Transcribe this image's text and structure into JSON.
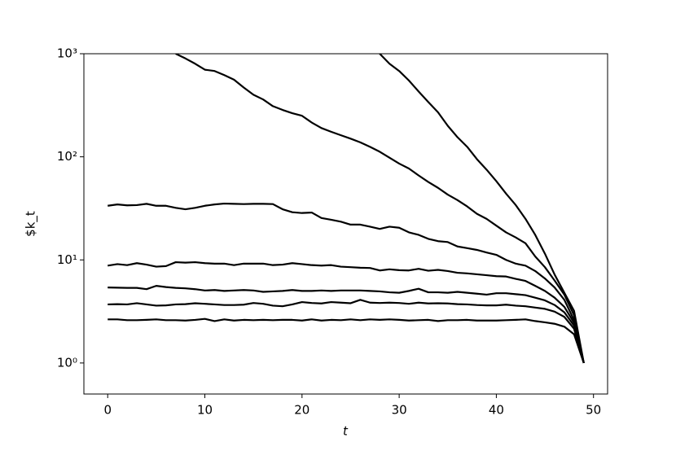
{
  "chart_data": {
    "type": "line",
    "y_label": "$k_t",
    "x_label": "t",
    "x": [
      0,
      1,
      2,
      3,
      4,
      5,
      6,
      7,
      8,
      9,
      10,
      11,
      12,
      13,
      14,
      15,
      16,
      17,
      18,
      19,
      20,
      21,
      22,
      23,
      24,
      25,
      26,
      27,
      28,
      29,
      30,
      31,
      32,
      33,
      34,
      35,
      36,
      37,
      38,
      39,
      40,
      41,
      42,
      43,
      44,
      45,
      46,
      47,
      48,
      49
    ],
    "color": "#000000",
    "series": [
      {
        "values": [
          2.65,
          2.65,
          2.6,
          2.6,
          2.62,
          2.65,
          2.6,
          2.6,
          2.58,
          2.62,
          2.68,
          2.55,
          2.65,
          2.58,
          2.62,
          2.6,
          2.62,
          2.6,
          2.62,
          2.62,
          2.58,
          2.65,
          2.58,
          2.62,
          2.6,
          2.65,
          2.6,
          2.65,
          2.62,
          2.65,
          2.62,
          2.58,
          2.6,
          2.62,
          2.55,
          2.6,
          2.6,
          2.62,
          2.58,
          2.58,
          2.58,
          2.6,
          2.62,
          2.65,
          2.55,
          2.48,
          2.4,
          2.25,
          1.9,
          1.0
        ]
      },
      {
        "values": [
          3.7,
          3.72,
          3.7,
          3.8,
          3.7,
          3.6,
          3.62,
          3.7,
          3.72,
          3.8,
          3.75,
          3.7,
          3.65,
          3.65,
          3.68,
          3.82,
          3.75,
          3.6,
          3.55,
          3.7,
          3.9,
          3.82,
          3.78,
          3.9,
          3.85,
          3.8,
          4.1,
          3.85,
          3.82,
          3.85,
          3.82,
          3.75,
          3.85,
          3.78,
          3.8,
          3.78,
          3.72,
          3.7,
          3.65,
          3.62,
          3.62,
          3.68,
          3.6,
          3.55,
          3.45,
          3.35,
          3.15,
          2.8,
          2.15,
          1.0
        ]
      },
      {
        "values": [
          5.4,
          5.38,
          5.35,
          5.35,
          5.2,
          5.6,
          5.45,
          5.35,
          5.3,
          5.2,
          5.05,
          5.1,
          5.0,
          5.05,
          5.1,
          5.05,
          4.9,
          4.95,
          5.0,
          5.1,
          5.0,
          5.0,
          5.05,
          5.0,
          5.05,
          5.05,
          5.05,
          5.0,
          4.95,
          4.85,
          4.8,
          5.0,
          5.25,
          4.85,
          4.85,
          4.8,
          4.9,
          4.8,
          4.7,
          4.6,
          4.75,
          4.75,
          4.65,
          4.55,
          4.3,
          4.05,
          3.65,
          3.1,
          2.3,
          1.0
        ]
      },
      {
        "values": [
          8.8,
          9.1,
          8.9,
          9.3,
          9.0,
          8.6,
          8.7,
          9.5,
          9.4,
          9.5,
          9.3,
          9.2,
          9.2,
          8.9,
          9.2,
          9.2,
          9.2,
          8.9,
          9.0,
          9.3,
          9.1,
          8.9,
          8.8,
          8.9,
          8.6,
          8.5,
          8.4,
          8.35,
          7.9,
          8.1,
          7.95,
          7.9,
          8.2,
          7.85,
          8.0,
          7.8,
          7.5,
          7.4,
          7.25,
          7.1,
          6.95,
          6.9,
          6.55,
          6.25,
          5.6,
          5.0,
          4.3,
          3.5,
          2.45,
          1.0
        ]
      },
      {
        "values": [
          33.5,
          34.5,
          33.8,
          34,
          35,
          33.5,
          33.5,
          32,
          31,
          32,
          33.5,
          34.5,
          35.2,
          35,
          34.8,
          35,
          35,
          34.8,
          31,
          29,
          28.5,
          28.8,
          25.5,
          24.5,
          23.5,
          22,
          22,
          21,
          20,
          21,
          20.5,
          18.5,
          17.5,
          16,
          15.2,
          14.9,
          13.5,
          13,
          12.5,
          11.8,
          11.2,
          10,
          9.2,
          8.8,
          7.8,
          6.6,
          5.4,
          4.1,
          2.6,
          1.0
        ]
      },
      {
        "values": [
          null,
          null,
          null,
          null,
          null,
          null,
          null,
          1000,
          900,
          800,
          700,
          680,
          620,
          560,
          470,
          400,
          360,
          310,
          285,
          265,
          250,
          215,
          190,
          175,
          162,
          150,
          138,
          125,
          112,
          98,
          86,
          77,
          66,
          57,
          50,
          43,
          38,
          33,
          28,
          25,
          21.5,
          18.5,
          16.5,
          14.5,
          10.8,
          8.5,
          6.3,
          4.6,
          2.9,
          1.0
        ]
      },
      {
        "values": [
          null,
          null,
          null,
          null,
          null,
          null,
          null,
          null,
          null,
          null,
          null,
          null,
          null,
          null,
          null,
          null,
          null,
          null,
          null,
          null,
          null,
          null,
          null,
          null,
          null,
          null,
          null,
          null,
          1000,
          800,
          680,
          550,
          430,
          340,
          270,
          200,
          155,
          125,
          95,
          75,
          58,
          44,
          34,
          25,
          17.5,
          11.5,
          7.2,
          4.8,
          3.2,
          1.0
        ]
      }
    ],
    "xlim": [
      -2.45,
      51.45
    ],
    "xticks": [
      0,
      10,
      20,
      30,
      40,
      50
    ],
    "ylim": [
      0.5,
      1000
    ],
    "y_scale": "log",
    "yticks": [
      {
        "value": 1,
        "label": "10⁰"
      },
      {
        "value": 10,
        "label": "10¹"
      },
      {
        "value": 100,
        "label": "10²"
      },
      {
        "value": 1000,
        "label": "10³"
      }
    ]
  }
}
